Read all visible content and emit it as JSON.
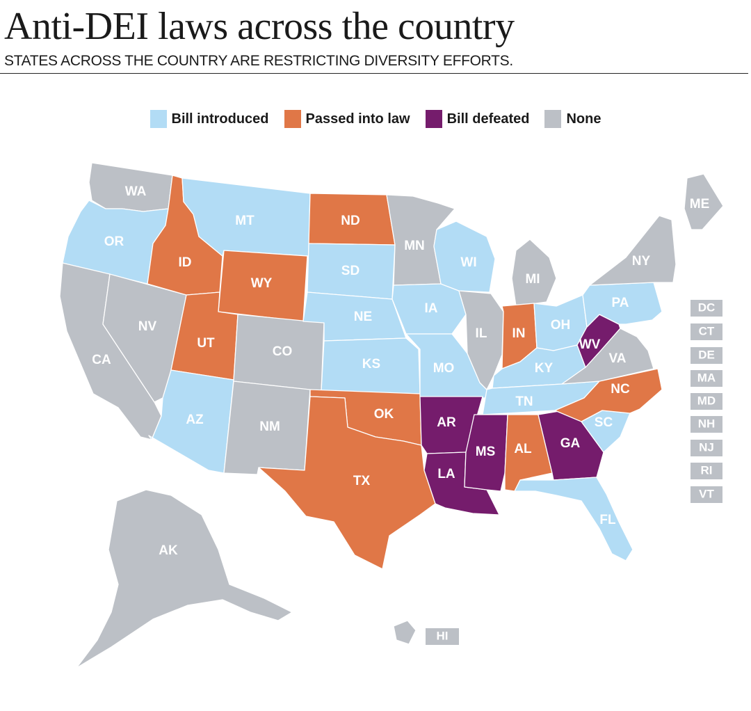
{
  "title": "Anti-DEI laws across the country",
  "subtitle": "STATES ACROSS THE COUNTRY ARE RESTRICTING DIVERSITY EFFORTS.",
  "legend": [
    {
      "label": "Bill introduced",
      "color": "#b2dcf5"
    },
    {
      "label": "Passed into law",
      "color": "#e07747"
    },
    {
      "label": "Bill defeated",
      "color": "#751c6c"
    },
    {
      "label": "None",
      "color": "#bcc0c6"
    }
  ],
  "states": {
    "WA": {
      "label": "WA",
      "status": "None"
    },
    "OR": {
      "label": "OR",
      "status": "Bill introduced"
    },
    "CA": {
      "label": "CA",
      "status": "None"
    },
    "NV": {
      "label": "NV",
      "status": "None"
    },
    "ID": {
      "label": "ID",
      "status": "Passed into law"
    },
    "MT": {
      "label": "MT",
      "status": "Bill introduced"
    },
    "WY": {
      "label": "WY",
      "status": "Passed into law"
    },
    "UT": {
      "label": "UT",
      "status": "Passed into law"
    },
    "AZ": {
      "label": "AZ",
      "status": "Bill introduced"
    },
    "CO": {
      "label": "CO",
      "status": "None"
    },
    "NM": {
      "label": "NM",
      "status": "None"
    },
    "ND": {
      "label": "ND",
      "status": "Passed into law"
    },
    "SD": {
      "label": "SD",
      "status": "Bill introduced"
    },
    "NE": {
      "label": "NE",
      "status": "Bill introduced"
    },
    "KS": {
      "label": "KS",
      "status": "Bill introduced"
    },
    "OK": {
      "label": "OK",
      "status": "Passed into law"
    },
    "TX": {
      "label": "TX",
      "status": "Passed into law"
    },
    "MN": {
      "label": "MN",
      "status": "None"
    },
    "IA": {
      "label": "IA",
      "status": "Bill introduced"
    },
    "MO": {
      "label": "MO",
      "status": "Bill introduced"
    },
    "AR": {
      "label": "AR",
      "status": "Bill defeated"
    },
    "LA": {
      "label": "LA",
      "status": "Bill defeated"
    },
    "WI": {
      "label": "WI",
      "status": "Bill introduced"
    },
    "IL": {
      "label": "IL",
      "status": "None"
    },
    "MI": {
      "label": "MI",
      "status": "None"
    },
    "IN": {
      "label": "IN",
      "status": "Passed into law"
    },
    "OH": {
      "label": "OH",
      "status": "Bill introduced"
    },
    "KY": {
      "label": "KY",
      "status": "Bill introduced"
    },
    "TN": {
      "label": "TN",
      "status": "Bill introduced"
    },
    "MS": {
      "label": "MS",
      "status": "Bill defeated"
    },
    "AL": {
      "label": "AL",
      "status": "Passed into law"
    },
    "GA": {
      "label": "GA",
      "status": "Bill defeated"
    },
    "FL": {
      "label": "FL",
      "status": "Bill introduced"
    },
    "SC": {
      "label": "SC",
      "status": "Bill introduced"
    },
    "NC": {
      "label": "NC",
      "status": "Passed into law"
    },
    "VA": {
      "label": "VA",
      "status": "None"
    },
    "WV": {
      "label": "WV",
      "status": "Bill defeated"
    },
    "PA": {
      "label": "PA",
      "status": "Bill introduced"
    },
    "NY": {
      "label": "NY",
      "status": "None"
    },
    "ME": {
      "label": "ME",
      "status": "None"
    },
    "AK": {
      "label": "AK",
      "status": "None"
    },
    "HI": {
      "label": "HI",
      "status": "None"
    }
  },
  "small_states": [
    {
      "label": "DC",
      "status": "None"
    },
    {
      "label": "CT",
      "status": "None"
    },
    {
      "label": "DE",
      "status": "None"
    },
    {
      "label": "MA",
      "status": "None"
    },
    {
      "label": "MD",
      "status": "None"
    },
    {
      "label": "NH",
      "status": "None"
    },
    {
      "label": "NJ",
      "status": "None"
    },
    {
      "label": "RI",
      "status": "None"
    },
    {
      "label": "VT",
      "status": "None"
    }
  ]
}
